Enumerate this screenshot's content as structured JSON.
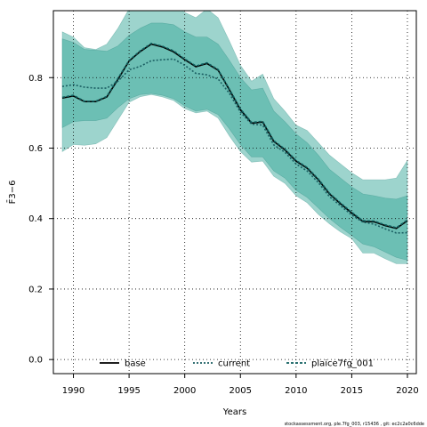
{
  "chart_data": {
    "type": "line",
    "xlabel": "Years",
    "ylabel": "F̄3−6",
    "xlim": [
      1988.2,
      2020.8
    ],
    "ylim": [
      -0.04,
      0.99
    ],
    "xticks": [
      1990,
      1995,
      2000,
      2005,
      2010,
      2015,
      2020
    ],
    "yticks": [
      0.0,
      0.2,
      0.4,
      0.6,
      0.8
    ],
    "ytick_labels": [
      "0.0",
      "0.2",
      "0.4",
      "0.6",
      "0.8"
    ],
    "grid": true,
    "legend_position": "bottom",
    "x": [
      1989,
      1990,
      1991,
      1992,
      1993,
      1994,
      1995,
      1996,
      1997,
      1998,
      1999,
      2000,
      2001,
      2002,
      2003,
      2004,
      2005,
      2006,
      2007,
      2008,
      2009,
      2010,
      2011,
      2012,
      2013,
      2014,
      2015,
      2016,
      2017,
      2018,
      2019,
      2020
    ],
    "series": [
      {
        "name": "base",
        "color": "#000000",
        "dash": "solid",
        "values": [
          0.742,
          0.748,
          0.732,
          0.732,
          0.745,
          0.795,
          0.847,
          0.874,
          0.895,
          0.887,
          0.873,
          0.851,
          0.831,
          0.84,
          0.821,
          0.766,
          0.709,
          0.671,
          0.674,
          0.619,
          0.595,
          0.563,
          0.543,
          0.51,
          0.47,
          0.442,
          0.416,
          0.392,
          0.391,
          0.38,
          0.372,
          0.394
        ]
      },
      {
        "name": "current",
        "color": "#1b5f63",
        "dash": "dotted",
        "values": [
          0.775,
          0.78,
          0.773,
          0.77,
          0.77,
          0.79,
          0.822,
          0.832,
          0.848,
          0.851,
          0.853,
          0.835,
          0.812,
          0.808,
          0.796,
          0.756,
          0.702,
          0.668,
          0.665,
          0.609,
          0.588,
          0.555,
          0.535,
          0.502,
          0.462,
          0.436,
          0.41,
          0.39,
          0.384,
          0.371,
          0.359,
          0.36
        ]
      },
      {
        "name": "plaice7fg_001",
        "color": "#0f5e5e",
        "dash": "dashed",
        "values": [
          0.744,
          0.75,
          0.733,
          0.733,
          0.747,
          0.798,
          0.849,
          0.876,
          0.897,
          0.889,
          0.876,
          0.853,
          0.833,
          0.842,
          0.823,
          0.768,
          0.711,
          0.673,
          0.676,
          0.621,
          0.597,
          0.565,
          0.545,
          0.512,
          0.472,
          0.444,
          0.418,
          0.394,
          0.393,
          0.382,
          0.374,
          0.396
        ]
      }
    ],
    "bands": [
      {
        "fill": "#3ba99c",
        "opacity": 0.5,
        "upper": [
          0.93,
          0.915,
          0.885,
          0.88,
          0.895,
          0.94,
          0.995,
          1.02,
          1.04,
          1.03,
          1.01,
          0.985,
          0.97,
          0.995,
          0.97,
          0.905,
          0.835,
          0.79,
          0.81,
          0.74,
          0.705,
          0.665,
          0.65,
          0.615,
          0.58,
          0.555,
          0.53,
          0.51,
          0.51,
          0.51,
          0.515,
          0.565
        ],
        "lower": [
          0.59,
          0.61,
          0.608,
          0.612,
          0.63,
          0.68,
          0.73,
          0.746,
          0.752,
          0.745,
          0.735,
          0.712,
          0.7,
          0.705,
          0.685,
          0.635,
          0.59,
          0.56,
          0.563,
          0.52,
          0.5,
          0.465,
          0.445,
          0.412,
          0.385,
          0.362,
          0.343,
          0.302,
          0.302,
          0.286,
          0.272,
          0.272
        ]
      },
      {
        "fill": "#3ba99c",
        "opacity": 0.5,
        "upper": [
          0.91,
          0.9,
          0.88,
          0.878,
          0.875,
          0.89,
          0.92,
          0.94,
          0.955,
          0.955,
          0.95,
          0.93,
          0.915,
          0.915,
          0.895,
          0.85,
          0.8,
          0.765,
          0.77,
          0.705,
          0.675,
          0.64,
          0.615,
          0.58,
          0.54,
          0.515,
          0.49,
          0.47,
          0.465,
          0.458,
          0.455,
          0.465
        ],
        "lower": [
          0.658,
          0.675,
          0.678,
          0.678,
          0.685,
          0.715,
          0.74,
          0.752,
          0.755,
          0.75,
          0.74,
          0.72,
          0.705,
          0.71,
          0.695,
          0.655,
          0.61,
          0.575,
          0.575,
          0.535,
          0.515,
          0.48,
          0.46,
          0.43,
          0.4,
          0.375,
          0.352,
          0.328,
          0.32,
          0.305,
          0.29,
          0.282
        ]
      }
    ],
    "footnote": "stockassessment.org, ple.7fg_003, r15436 , git: ec2c2a0c6dde"
  }
}
